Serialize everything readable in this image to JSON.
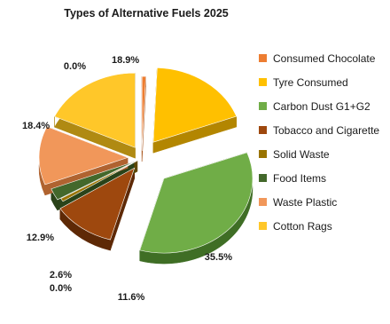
{
  "chart_data": {
    "type": "pie",
    "title": "Types of Alternative Fuels 2025",
    "legend_position": "right",
    "slices": [
      {
        "name": "Consumed Chocolate",
        "value": 0.0,
        "label": "0.0%",
        "color": "#ED7D31",
        "side": "#A9561D"
      },
      {
        "name": "Tyre Consumed",
        "value": 18.9,
        "label": "18.9%",
        "color": "#FFC000",
        "side": "#B38600"
      },
      {
        "name": "Carbon Dust G1+G2",
        "value": 35.5,
        "label": "35.5%",
        "color": "#70AD47",
        "side": "#3F6E25"
      },
      {
        "name": "Tobacco and Cigarette",
        "value": 11.6,
        "label": "11.6%",
        "color": "#9E480E",
        "side": "#5E2906"
      },
      {
        "name": "Solid Waste",
        "value": 0.0,
        "label": "0.0%",
        "color": "#997300",
        "side": "#5E4700"
      },
      {
        "name": "Food Items",
        "value": 2.6,
        "label": "2.6%",
        "color": "#43682B",
        "side": "#2A4319"
      },
      {
        "name": "Waste Plastic",
        "value": 12.9,
        "label": "12.9%",
        "color": "#F1975A",
        "side": "#B06330"
      },
      {
        "name": "Cotton Rags",
        "value": 18.4,
        "label": "18.4%",
        "color": "#FFC729",
        "side": "#B08A12"
      }
    ]
  }
}
